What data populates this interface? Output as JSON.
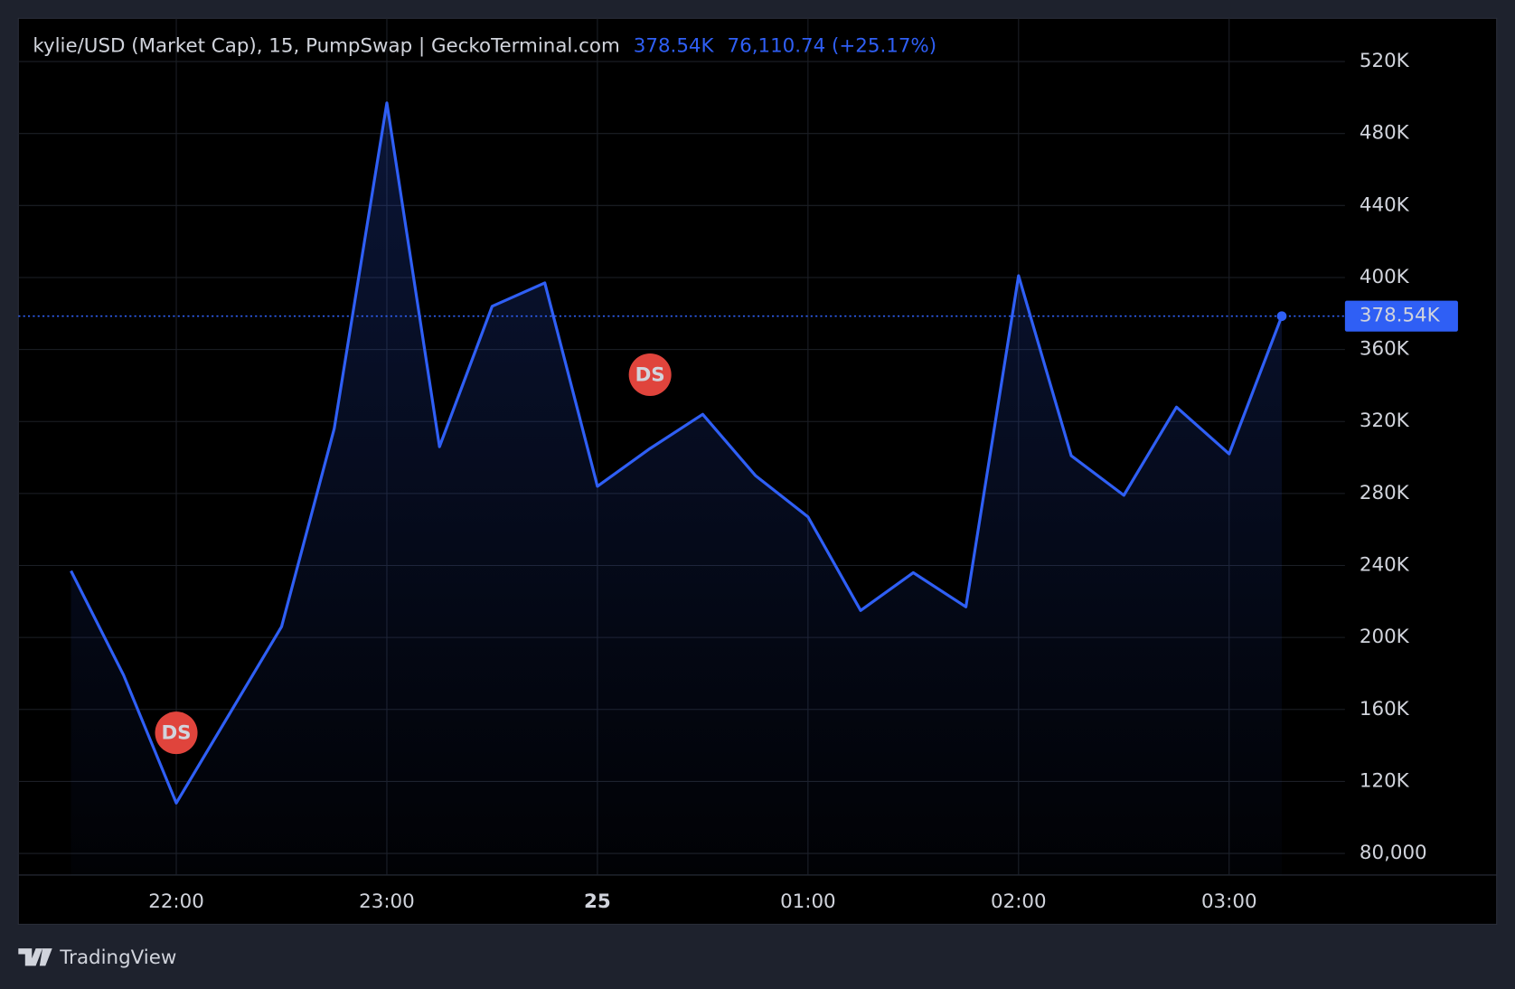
{
  "chart_data": {
    "type": "line",
    "title": "kylie/USD (Market Cap), 15, PumpSwap | GeckoTerminal.com",
    "last_value_label": "378.54K",
    "change": "76,110.74 (+25.17%)",
    "x": [
      21.5,
      21.75,
      22,
      22.25,
      22.5,
      22.75,
      23,
      23.25,
      23.5,
      23.75,
      24,
      24.25,
      24.5,
      24.75,
      25,
      25.25,
      25.5,
      25.75,
      26,
      26.25,
      26.5,
      26.75,
      27,
      27.25
    ],
    "values": [
      237000,
      179000,
      108000,
      157000,
      206000,
      316000,
      497000,
      306000,
      384000,
      397000,
      284000,
      305000,
      324000,
      290000,
      267000,
      215000,
      236000,
      217000,
      401000,
      301000,
      279000,
      328000,
      302000,
      378540
    ],
    "color": "#2f5ff5",
    "xlim": [
      21.25,
      27.55
    ],
    "xticks": [
      {
        "value": 22,
        "label": "22:00"
      },
      {
        "value": 23,
        "label": "23:00"
      },
      {
        "value": 24,
        "label": "25"
      },
      {
        "value": 25,
        "label": "01:00"
      },
      {
        "value": 26,
        "label": "02:00"
      },
      {
        "value": 27,
        "label": "03:00"
      }
    ],
    "ylim": [
      68000,
      544000
    ],
    "yticks": [
      {
        "value": 80000,
        "label": "80,000"
      },
      {
        "value": 120000,
        "label": "120K"
      },
      {
        "value": 160000,
        "label": "160K"
      },
      {
        "value": 200000,
        "label": "200K"
      },
      {
        "value": 240000,
        "label": "240K"
      },
      {
        "value": 280000,
        "label": "280K"
      },
      {
        "value": 320000,
        "label": "320K"
      },
      {
        "value": 360000,
        "label": "360K"
      },
      {
        "value": 400000,
        "label": "400K"
      },
      {
        "value": 440000,
        "label": "440K"
      },
      {
        "value": 480000,
        "label": "480K"
      },
      {
        "value": 520000,
        "label": "520K"
      }
    ],
    "grid": true,
    "markers": [
      {
        "label": "DS",
        "x": 22,
        "y": 147000
      },
      {
        "label": "DS",
        "x": 24.25,
        "y": 346000
      }
    ]
  },
  "branding": "TradingView"
}
